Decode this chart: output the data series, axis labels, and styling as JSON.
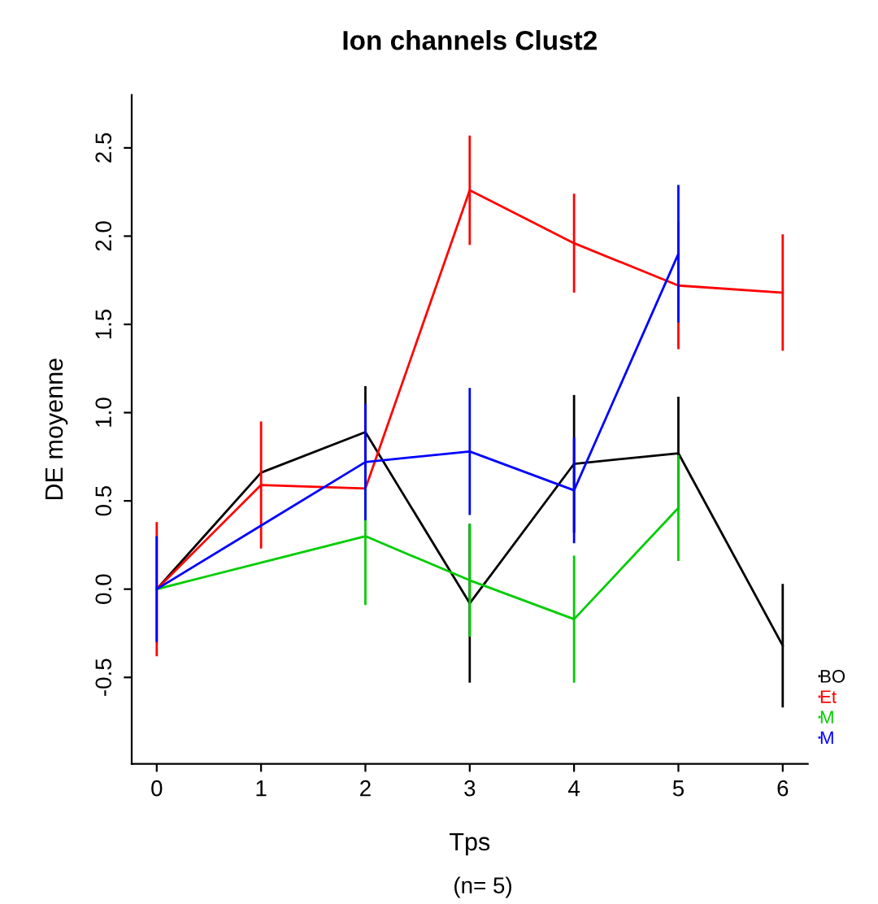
{
  "chart_data": {
    "type": "line",
    "title": "Ion channels Clust2",
    "xlabel": "Tps",
    "ylabel": "DE moyenne",
    "annotations": [
      "(n= 5)"
    ],
    "x": [
      0,
      1,
      2,
      3,
      4,
      5,
      6
    ],
    "series": [
      {
        "name": "BO",
        "color": "#000000",
        "values": [
          0,
          0.66,
          0.89,
          -0.08,
          0.71,
          0.77,
          -0.32
        ],
        "errors": [
          null,
          null,
          0.26,
          0.45,
          0.39,
          0.32,
          0.35
        ]
      },
      {
        "name": "Et",
        "color": "#ff0000",
        "values": [
          0,
          0.59,
          0.57,
          2.26,
          1.96,
          1.72,
          1.68
        ],
        "errors": [
          0.38,
          0.36,
          null,
          0.31,
          0.28,
          0.36,
          0.33
        ]
      },
      {
        "name": "M",
        "color": "#00cc00",
        "values": [
          0,
          0.15,
          0.3,
          0.05,
          -0.17,
          0.46,
          null
        ],
        "errors": [
          null,
          null,
          0.39,
          0.32,
          0.36,
          0.3,
          null
        ]
      },
      {
        "name": "M",
        "color": "#0000ff",
        "values": [
          0,
          0.36,
          0.72,
          0.78,
          0.56,
          1.9,
          null
        ],
        "errors": [
          0.3,
          null,
          0.33,
          0.36,
          0.3,
          0.39,
          null
        ]
      }
    ],
    "xlim": [
      -0.24,
      6.24
    ],
    "ylim": [
      -0.99,
      2.8
    ],
    "xticks": [
      0,
      1,
      2,
      3,
      4,
      5,
      6
    ],
    "yticks": [
      {
        "value": -0.5,
        "label": "-0.5"
      },
      {
        "value": 0,
        "label": "0.0"
      },
      {
        "value": 0.5,
        "label": "0.5"
      },
      {
        "value": 1,
        "label": "1.0"
      },
      {
        "value": 1.5,
        "label": "1.5"
      },
      {
        "value": 2,
        "label": "2.0"
      },
      {
        "value": 2.5,
        "label": "2.5"
      }
    ],
    "grid": false,
    "legend": "bottom right",
    "marker": "none",
    "line_style": "solid"
  }
}
